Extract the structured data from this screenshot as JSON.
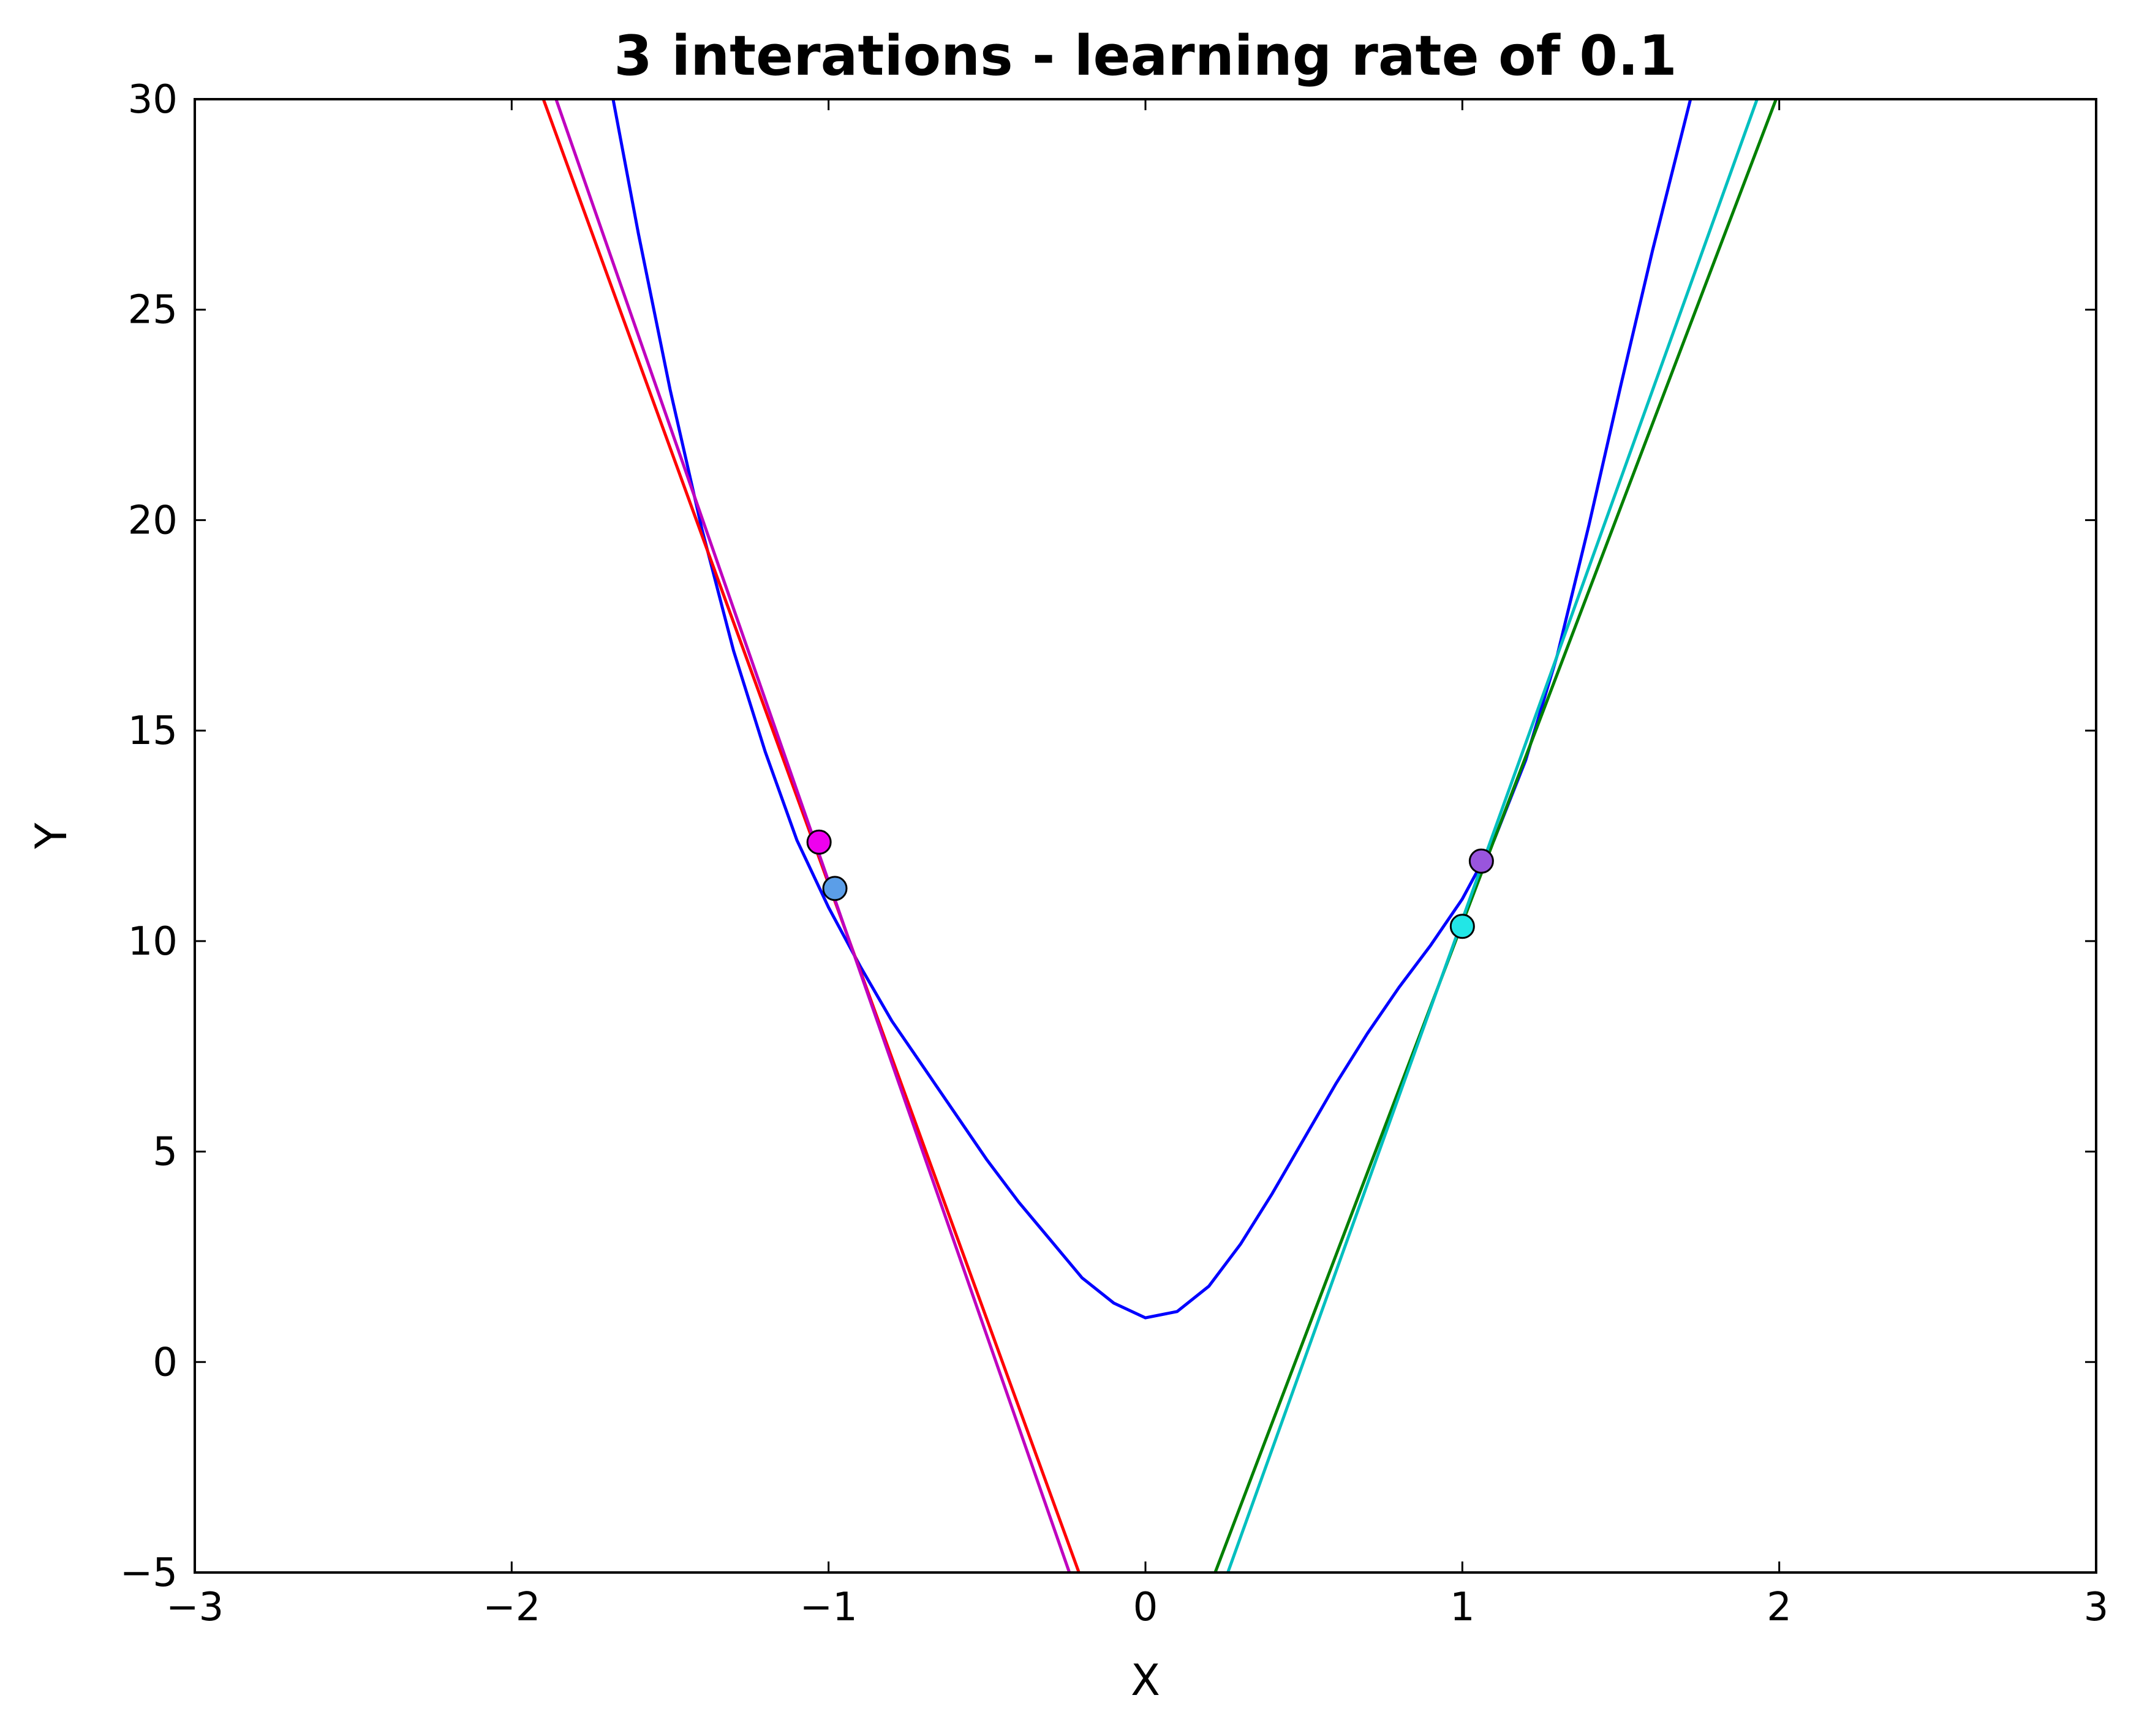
{
  "chart_data": {
    "type": "line",
    "title": "3 interations - learning rate of 0.1",
    "xlabel": "X",
    "ylabel": "Y",
    "xlim": [
      -3,
      3
    ],
    "ylim": [
      -5,
      30
    ],
    "x_ticks": [
      -3,
      -2,
      -1,
      0,
      1,
      2,
      3
    ],
    "x_tick_labels": [
      "−3",
      "−2",
      "−1",
      "0",
      "1",
      "2",
      "3"
    ],
    "y_ticks": [
      -5,
      0,
      5,
      10,
      15,
      20,
      25,
      30
    ],
    "y_tick_labels": [
      "−5",
      "0",
      "5",
      "10",
      "15",
      "20",
      "25",
      "30"
    ],
    "grid": false,
    "curve": {
      "color": "#0000ff",
      "x": [
        -1.68,
        -1.6,
        -1.5,
        -1.4,
        -1.3,
        -1.2,
        -1.1,
        -1.0,
        -0.9,
        -0.8,
        -0.7,
        -0.6,
        -0.5,
        -0.4,
        -0.3,
        -0.2,
        -0.1,
        0.0,
        0.1,
        0.2,
        0.3,
        0.4,
        0.5,
        0.6,
        0.7,
        0.8,
        0.9,
        1.0,
        1.1,
        1.2,
        1.3,
        1.4,
        1.5,
        1.6,
        1.72
      ],
      "y": [
        30.0,
        26.8,
        23.1,
        19.8,
        16.9,
        14.5,
        12.4,
        10.8,
        9.4,
        8.1,
        7.0,
        5.9,
        4.8,
        3.8,
        2.9,
        2.0,
        1.4,
        1.05,
        1.2,
        1.8,
        2.8,
        4.0,
        5.3,
        6.6,
        7.8,
        8.9,
        9.9,
        11.0,
        12.4,
        14.3,
        16.8,
        19.9,
        23.2,
        26.4,
        30.0
      ]
    },
    "series": [
      {
        "color": "#ff0000",
        "x": [
          -1.9,
          -0.21
        ],
        "y": [
          30,
          -5
        ]
      },
      {
        "color": "#bf00bf",
        "x": [
          -1.86,
          -0.24
        ],
        "y": [
          30,
          -5
        ]
      },
      {
        "color": "#008000",
        "x": [
          0.22,
          1.99
        ],
        "y": [
          -5,
          30
        ]
      },
      {
        "color": "#00bfbf",
        "x": [
          0.26,
          1.93
        ],
        "y": [
          -5,
          30
        ]
      }
    ],
    "points": [
      {
        "x": -1.03,
        "y": 12.35,
        "color": "#ee00ee"
      },
      {
        "x": -0.98,
        "y": 11.25,
        "color": "#5b9ee8"
      },
      {
        "x": 1.06,
        "y": 11.9,
        "color": "#9955dd"
      },
      {
        "x": 1.0,
        "y": 10.35,
        "color": "#22e6e6"
      }
    ]
  }
}
